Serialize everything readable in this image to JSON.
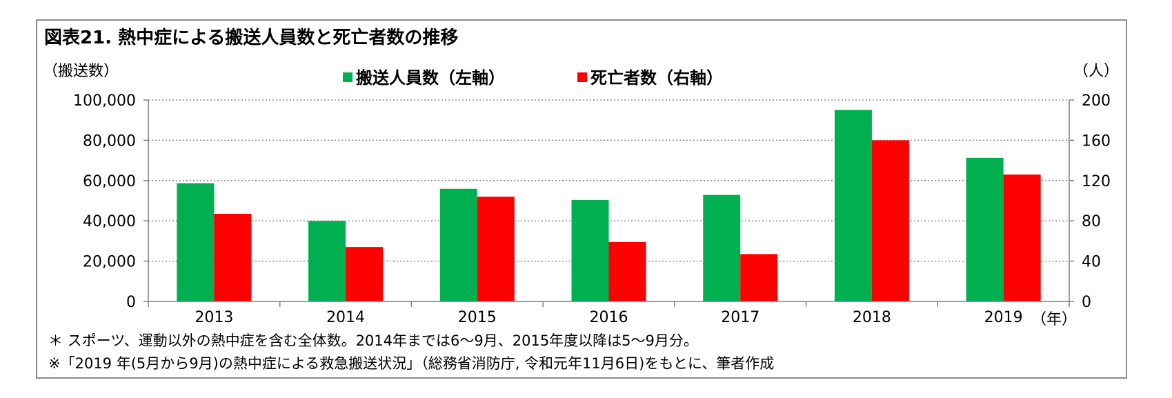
{
  "colors": {
    "series_left": "#00b050",
    "series_right": "#ff0000",
    "grid": "#8c8c8c",
    "axis": "#7f7f7f",
    "frame": "#8c8c8c"
  },
  "chart_data": {
    "type": "bar",
    "title": "図表21.  熱中症による搬送人員数と死亡者数の推移",
    "left_axis_unit": "（搬送数）",
    "right_axis_unit": "（人）",
    "x_unit": "（年）",
    "categories": [
      "2013",
      "2014",
      "2015",
      "2016",
      "2017",
      "2018",
      "2019"
    ],
    "series": [
      {
        "name": "搬送人員数（左軸）",
        "axis": "left",
        "color": "#00b050",
        "values": [
          58700,
          40000,
          55900,
          50400,
          52900,
          95100,
          71300
        ]
      },
      {
        "name": "死亡者数（右軸）",
        "axis": "right",
        "color": "#ff0000",
        "values": [
          87,
          54,
          104,
          59,
          47,
          160,
          126
        ]
      }
    ],
    "left_ylim": [
      0,
      100000
    ],
    "left_ticks": [
      "0",
      "20,000",
      "40,000",
      "60,000",
      "80,000",
      "100,000"
    ],
    "right_ylim": [
      0,
      200
    ],
    "right_ticks": [
      "0",
      "40",
      "80",
      "120",
      "160",
      "200"
    ],
    "grid": true,
    "legend": "top-center"
  },
  "notes": [
    "＊ スポーツ、運動以外の熱中症を含む全体数。2014年までは6～9月、2015年度以降は5～9月分。",
    "※「2019 年(5月から9月)の熱中症による救急搬送状況」（総務省消防庁, 令和元年11月6日)をもとに、筆者作成"
  ]
}
